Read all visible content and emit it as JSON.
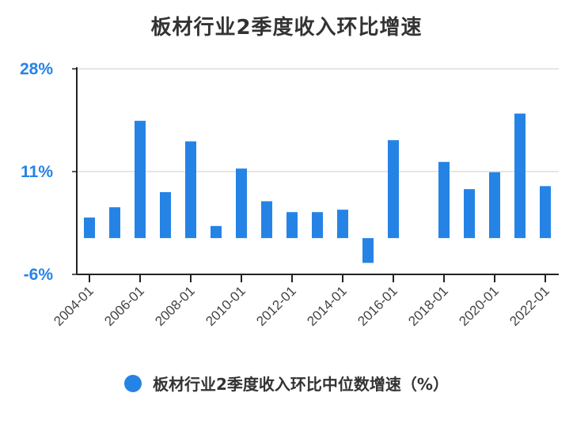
{
  "chart_data": {
    "type": "bar",
    "title": "板材行业2季度收入环比增速",
    "categories": [
      "2004-01",
      "2005-01",
      "2006-01",
      "2007-01",
      "2008-01",
      "2009-01",
      "2010-01",
      "2011-01",
      "2012-01",
      "2013-01",
      "2014-01",
      "2015-01",
      "2016-01",
      "2017-01",
      "2018-01",
      "2019-01",
      "2020-01",
      "2021-01",
      "2022-01"
    ],
    "series": [
      {
        "name": "板材行业2季度收入环比中位数增速（%）",
        "values": [
          3.4,
          5.1,
          19.4,
          7.6,
          16.0,
          2.0,
          11.5,
          6.1,
          4.3,
          4.3,
          4.7,
          -4.1,
          16.2,
          null,
          12.6,
          8.1,
          10.9,
          20.6,
          8.6
        ]
      }
    ],
    "yticks": [
      {
        "value": 28,
        "label": "28%"
      },
      {
        "value": 11,
        "label": "11%"
      },
      {
        "value": -6,
        "label": "-6%"
      }
    ],
    "xtick_labels": [
      "2004-01",
      "2006-01",
      "2008-01",
      "2010-01",
      "2012-01",
      "2014-01",
      "2016-01",
      "2018-01",
      "2020-01",
      "2022-01"
    ],
    "ylim": [
      -6,
      28
    ],
    "gridlines": true,
    "legend_position": "bottom",
    "colors": {
      "bar": "#2683E6",
      "ytick": "#2683E6",
      "grid": "#dddddd",
      "axis": "#222222"
    }
  }
}
